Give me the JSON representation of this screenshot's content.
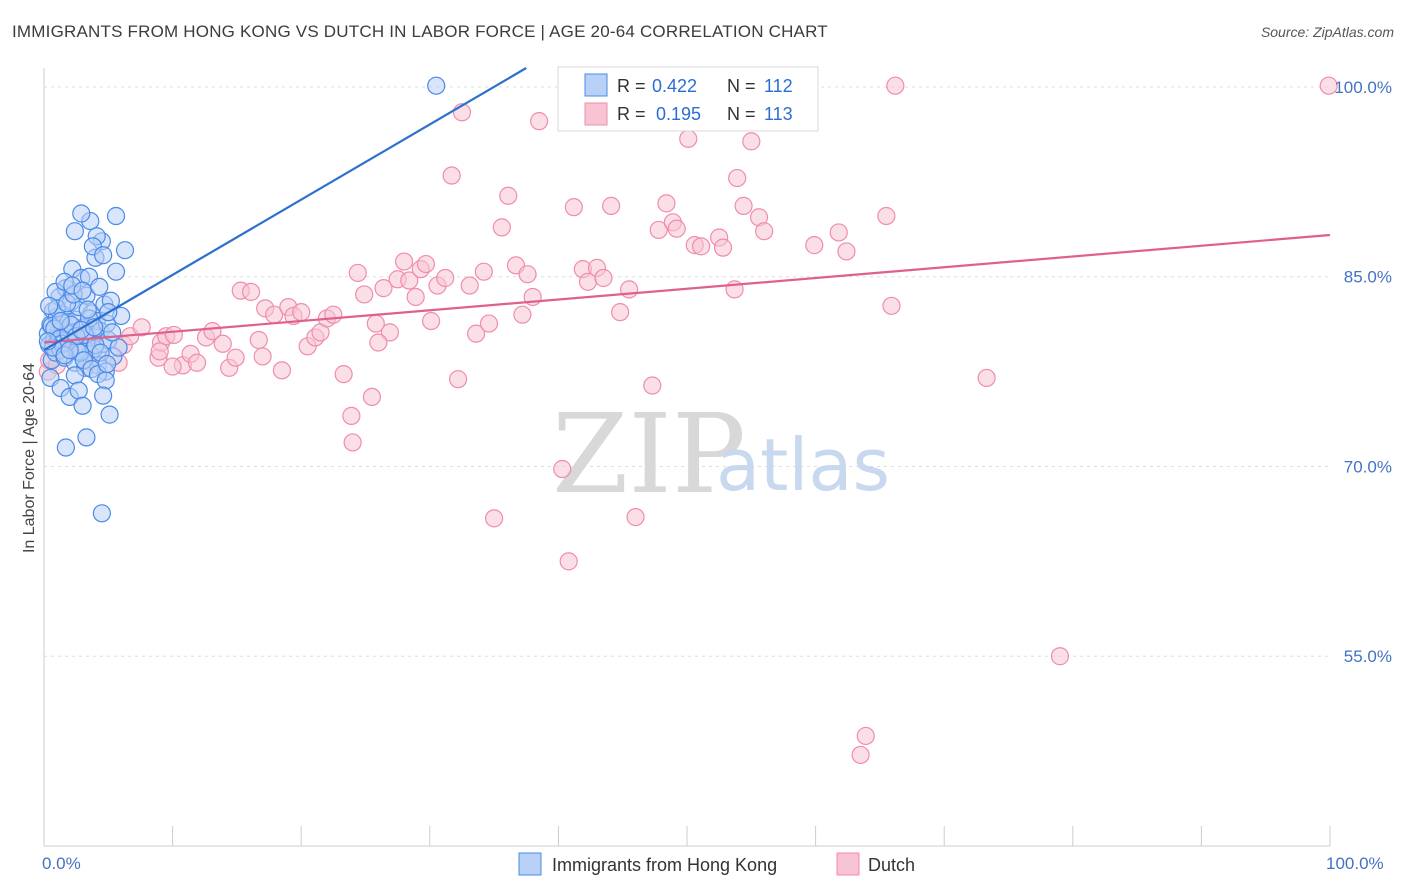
{
  "title": "IMMIGRANTS FROM HONG KONG VS DUTCH IN LABOR FORCE | AGE 20-64 CORRELATION CHART",
  "source": "Source: ZipAtlas.com",
  "watermark": {
    "zip": "ZIP",
    "atlas": "atlas"
  },
  "legend_top": {
    "r_label": "R =",
    "n_label": "N =",
    "rows": [
      {
        "r": "0.422",
        "n": "112",
        "color": "#4a8be8"
      },
      {
        "r": "0.195",
        "n": "113",
        "color": "#f08cac"
      }
    ]
  },
  "legend_bottom": [
    {
      "label": "Immigrants from Hong Kong",
      "color": "#4a8be8"
    },
    {
      "label": "Dutch",
      "color": "#f08cac"
    }
  ],
  "chart_data": {
    "type": "scatter",
    "title": "IMMIGRANTS FROM HONG KONG VS DUTCH IN LABOR FORCE | AGE 20-64 CORRELATION CHART",
    "xlabel": "",
    "ylabel": "In Labor Force | Age 20-64",
    "xlim": [
      0,
      100
    ],
    "ylim": [
      40,
      101.5
    ],
    "x_tick_labels": [
      "0.0%",
      "100.0%"
    ],
    "y_ticks": [
      55,
      70,
      85,
      100
    ],
    "y_tick_labels": [
      "55.0%",
      "70.0%",
      "85.0%",
      "100.0%"
    ],
    "grid": true,
    "series": [
      {
        "name": "Immigrants from Hong Kong",
        "color": "#4a8be8",
        "trend": {
          "x0": 0,
          "y0": 79.2,
          "x1": 37.5,
          "y1": 101.5
        },
        "points": [
          [
            0.3,
            80.5
          ],
          [
            0.4,
            79.6
          ],
          [
            0.5,
            81.2
          ],
          [
            0.6,
            78.4
          ],
          [
            0.7,
            82.3
          ],
          [
            0.8,
            80.1
          ],
          [
            0.9,
            79.0
          ],
          [
            1.0,
            81.8
          ],
          [
            1.1,
            80.6
          ],
          [
            1.2,
            83.4
          ],
          [
            1.3,
            79.2
          ],
          [
            1.4,
            80.9
          ],
          [
            1.5,
            82.0
          ],
          [
            1.6,
            78.6
          ],
          [
            1.7,
            84.1
          ],
          [
            1.8,
            80.3
          ],
          [
            1.9,
            81.4
          ],
          [
            2.0,
            79.8
          ],
          [
            2.1,
            83.0
          ],
          [
            2.2,
            85.6
          ],
          [
            2.3,
            80.0
          ],
          [
            2.4,
            78.2
          ],
          [
            2.5,
            81.6
          ],
          [
            2.6,
            79.5
          ],
          [
            2.7,
            82.6
          ],
          [
            2.8,
            80.8
          ],
          [
            2.9,
            84.9
          ],
          [
            3.0,
            79.1
          ],
          [
            3.1,
            81.0
          ],
          [
            3.2,
            77.8
          ],
          [
            3.3,
            83.5
          ],
          [
            3.4,
            80.2
          ],
          [
            3.5,
            85.0
          ],
          [
            3.6,
            78.9
          ],
          [
            3.7,
            82.1
          ],
          [
            3.8,
            80.4
          ],
          [
            3.9,
            79.3
          ],
          [
            4.0,
            86.5
          ],
          [
            4.1,
            81.5
          ],
          [
            4.2,
            78.0
          ],
          [
            4.3,
            84.2
          ],
          [
            4.4,
            80.7
          ],
          [
            4.5,
            87.8
          ],
          [
            4.6,
            79.7
          ],
          [
            4.7,
            82.8
          ],
          [
            4.8,
            77.5
          ],
          [
            4.9,
            81.3
          ],
          [
            5.0,
            80.0
          ],
          [
            5.2,
            83.1
          ],
          [
            5.4,
            78.7
          ],
          [
            5.6,
            85.4
          ],
          [
            5.8,
            79.4
          ],
          [
            6.0,
            81.9
          ],
          [
            0.5,
            77.0
          ],
          [
            0.9,
            83.8
          ],
          [
            1.3,
            76.2
          ],
          [
            1.6,
            84.6
          ],
          [
            2.0,
            75.5
          ],
          [
            2.4,
            77.2
          ],
          [
            2.7,
            76.0
          ],
          [
            3.0,
            74.8
          ],
          [
            3.3,
            72.3
          ],
          [
            1.7,
            71.5
          ],
          [
            4.5,
            66.3
          ],
          [
            3.6,
            89.4
          ],
          [
            4.1,
            88.2
          ],
          [
            2.9,
            90.0
          ],
          [
            2.4,
            88.6
          ],
          [
            3.8,
            87.4
          ],
          [
            5.6,
            89.8
          ],
          [
            6.3,
            87.1
          ],
          [
            4.6,
            86.7
          ],
          [
            1.1,
            80.2
          ],
          [
            1.5,
            79.9
          ],
          [
            2.2,
            80.6
          ],
          [
            2.6,
            79.1
          ],
          [
            3.2,
            80.4
          ],
          [
            3.5,
            81.7
          ],
          [
            4.0,
            79.6
          ],
          [
            1.0,
            82.5
          ],
          [
            1.8,
            82.9
          ],
          [
            2.3,
            83.6
          ],
          [
            2.8,
            79.0
          ],
          [
            3.1,
            78.4
          ],
          [
            3.7,
            77.7
          ],
          [
            4.2,
            77.3
          ],
          [
            4.8,
            76.8
          ],
          [
            5.1,
            74.1
          ],
          [
            4.6,
            75.6
          ],
          [
            0.6,
            81.1
          ],
          [
            0.8,
            80.9
          ],
          [
            1.2,
            80.1
          ],
          [
            1.4,
            79.7
          ],
          [
            1.9,
            80.5
          ],
          [
            2.1,
            81.2
          ],
          [
            2.5,
            80.3
          ],
          [
            0.7,
            79.4
          ],
          [
            1.6,
            78.8
          ],
          [
            2.0,
            79.2
          ],
          [
            2.9,
            80.8
          ],
          [
            3.4,
            82.4
          ],
          [
            3.9,
            81.0
          ],
          [
            4.4,
            79.0
          ],
          [
            4.9,
            78.1
          ],
          [
            5.0,
            82.2
          ],
          [
            5.3,
            80.6
          ],
          [
            0.4,
            82.7
          ],
          [
            1.3,
            81.5
          ],
          [
            2.2,
            84.3
          ],
          [
            3.0,
            83.9
          ],
          [
            30.5,
            100.1
          ],
          [
            0.3,
            79.9
          ]
        ]
      },
      {
        "name": "Dutch",
        "color": "#f08cac",
        "trend": {
          "x0": 0,
          "y0": 79.8,
          "x1": 100,
          "y1": 88.3
        },
        "points": [
          [
            0.3,
            77.5
          ],
          [
            0.4,
            78.4
          ],
          [
            1.0,
            78.0
          ],
          [
            2.0,
            79.7
          ],
          [
            3.5,
            78.3
          ],
          [
            4.2,
            79.0
          ],
          [
            5.8,
            78.2
          ],
          [
            6.2,
            79.6
          ],
          [
            6.7,
            80.3
          ],
          [
            7.6,
            81.0
          ],
          [
            8.9,
            78.6
          ],
          [
            9.1,
            79.8
          ],
          [
            9.5,
            80.3
          ],
          [
            10.1,
            80.4
          ],
          [
            10.8,
            78.0
          ],
          [
            11.4,
            78.9
          ],
          [
            11.9,
            78.2
          ],
          [
            12.6,
            80.2
          ],
          [
            13.1,
            80.7
          ],
          [
            13.9,
            79.7
          ],
          [
            14.4,
            77.8
          ],
          [
            14.9,
            78.6
          ],
          [
            15.3,
            83.9
          ],
          [
            16.1,
            83.8
          ],
          [
            16.7,
            80.0
          ],
          [
            17.2,
            82.5
          ],
          [
            17.9,
            82.0
          ],
          [
            18.5,
            77.6
          ],
          [
            19.0,
            82.6
          ],
          [
            19.4,
            81.9
          ],
          [
            20.0,
            82.2
          ],
          [
            20.5,
            79.5
          ],
          [
            21.1,
            80.2
          ],
          [
            21.5,
            80.6
          ],
          [
            22.0,
            81.7
          ],
          [
            22.5,
            82.0
          ],
          [
            23.3,
            77.3
          ],
          [
            23.9,
            74.0
          ],
          [
            24.4,
            85.3
          ],
          [
            24.9,
            83.6
          ],
          [
            25.5,
            75.5
          ],
          [
            25.8,
            81.3
          ],
          [
            26.4,
            84.1
          ],
          [
            26.9,
            80.6
          ],
          [
            27.5,
            84.8
          ],
          [
            28.0,
            86.2
          ],
          [
            28.4,
            84.7
          ],
          [
            28.9,
            83.4
          ],
          [
            29.3,
            85.6
          ],
          [
            29.7,
            86.0
          ],
          [
            30.1,
            81.5
          ],
          [
            30.6,
            84.3
          ],
          [
            31.2,
            84.9
          ],
          [
            31.7,
            93.0
          ],
          [
            32.2,
            76.9
          ],
          [
            32.5,
            98.0
          ],
          [
            33.1,
            84.3
          ],
          [
            33.6,
            80.5
          ],
          [
            34.2,
            85.4
          ],
          [
            34.6,
            81.3
          ],
          [
            35.0,
            65.9
          ],
          [
            35.6,
            88.9
          ],
          [
            36.1,
            91.4
          ],
          [
            36.7,
            85.9
          ],
          [
            37.2,
            82.0
          ],
          [
            37.6,
            85.2
          ],
          [
            38.0,
            83.4
          ],
          [
            38.5,
            97.3
          ],
          [
            40.3,
            69.8
          ],
          [
            40.8,
            62.5
          ],
          [
            41.2,
            90.5
          ],
          [
            41.9,
            85.6
          ],
          [
            42.3,
            84.6
          ],
          [
            43.0,
            85.7
          ],
          [
            43.5,
            84.9
          ],
          [
            44.1,
            90.6
          ],
          [
            44.8,
            82.2
          ],
          [
            45.5,
            84.0
          ],
          [
            46.0,
            66.0
          ],
          [
            47.3,
            76.4
          ],
          [
            47.8,
            88.7
          ],
          [
            48.4,
            90.8
          ],
          [
            48.9,
            89.3
          ],
          [
            49.2,
            88.8
          ],
          [
            50.1,
            95.9
          ],
          [
            50.6,
            87.5
          ],
          [
            51.1,
            87.4
          ],
          [
            52.5,
            88.1
          ],
          [
            52.8,
            87.3
          ],
          [
            53.7,
            84.0
          ],
          [
            53.9,
            92.8
          ],
          [
            54.4,
            90.6
          ],
          [
            55.0,
            95.7
          ],
          [
            55.6,
            89.7
          ],
          [
            56.0,
            88.6
          ],
          [
            56.4,
            99.6
          ],
          [
            57.3,
            97.6
          ],
          [
            59.9,
            87.5
          ],
          [
            61.8,
            88.5
          ],
          [
            62.4,
            87.0
          ],
          [
            63.5,
            47.2
          ],
          [
            63.9,
            48.7
          ],
          [
            65.5,
            89.8
          ],
          [
            65.9,
            82.7
          ],
          [
            66.2,
            100.1
          ],
          [
            73.3,
            77.0
          ],
          [
            79.0,
            55.0
          ],
          [
            99.9,
            100.1
          ],
          [
            24.0,
            71.9
          ],
          [
            26.0,
            79.8
          ],
          [
            17.0,
            78.7
          ],
          [
            9.0,
            79.1
          ],
          [
            10.0,
            77.9
          ]
        ]
      }
    ]
  }
}
